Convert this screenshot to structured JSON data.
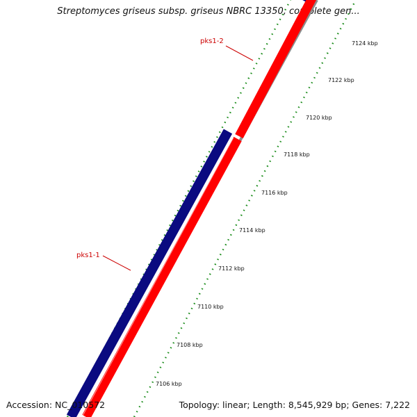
{
  "header": {
    "title": "Streptomyces griseus subsp. griseus NBRC 13350, complete gen..."
  },
  "footer": {
    "accession": "Accession: NC_010572",
    "summary": "Topology: linear; Length: 8,545,929 bp; Genes: 7,222"
  },
  "colors": {
    "forward_strand": "#0a0a80",
    "reverse_strand": "#ff0000",
    "backbone": "#8c8c8c",
    "ticks": "#1a8c1a",
    "gene_labels": "#cc0000"
  },
  "scale": {
    "unit": "kbp",
    "tick_labels": [
      "7106 kbp",
      "7108 kbp",
      "7110 kbp",
      "7112 kbp",
      "7114 kbp",
      "7116 kbp",
      "7118 kbp",
      "7120 kbp",
      "7122 kbp",
      "7124 kbp"
    ]
  },
  "genes": [
    {
      "label": "pks1-1"
    },
    {
      "label": "pks1-2"
    }
  ]
}
